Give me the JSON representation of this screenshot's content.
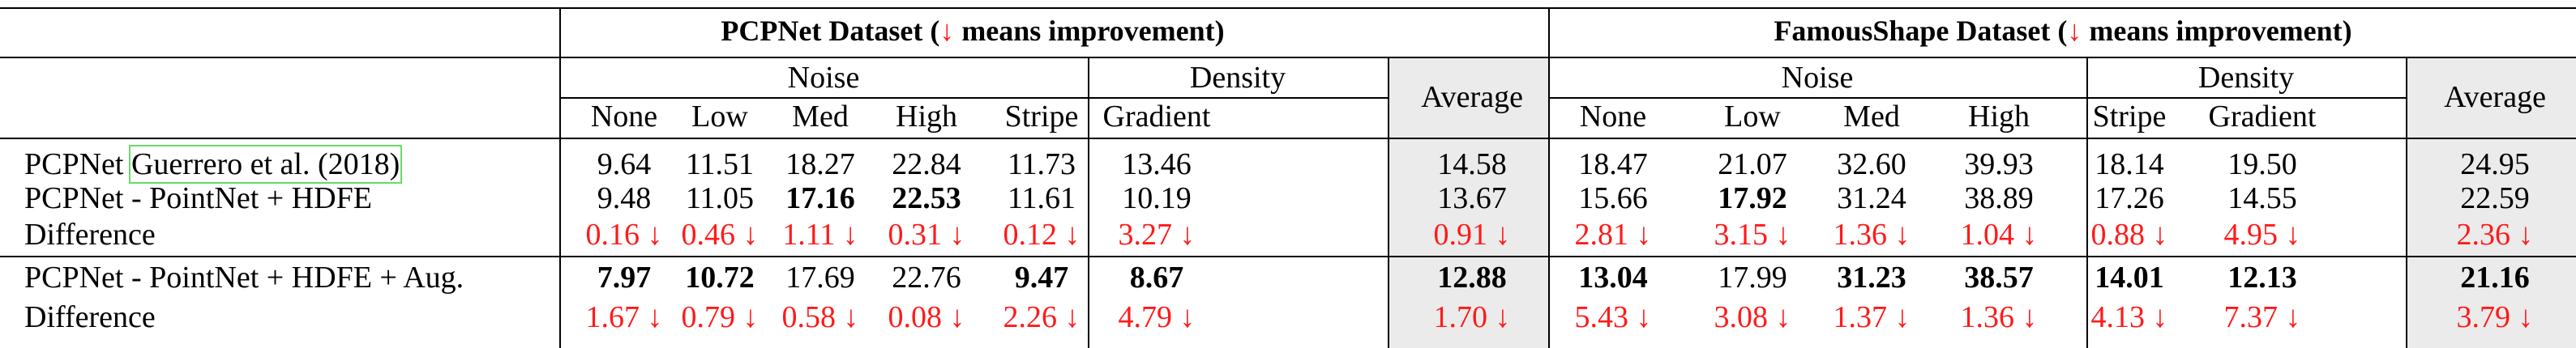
{
  "header": {
    "pcpnet_title_pre": "PCPNet Dataset (",
    "pcpnet_title_arrow": "↓",
    "pcpnet_title_post": " means improvement)",
    "famous_title_pre": "FamousShape Dataset (",
    "famous_title_arrow": "↓",
    "famous_title_post": " means improvement)",
    "noise": "Noise",
    "density": "Density",
    "average": "Average",
    "columns": [
      "None",
      "Low",
      "Med",
      "High",
      "Stripe",
      "Gradient"
    ]
  },
  "rows": [
    {
      "label_pre": "PCPNet ",
      "label_ref": "Guerrero et al. (2018)",
      "pcpnet": [
        "9.64",
        "11.51",
        "18.27",
        "22.84",
        "11.73",
        "13.46",
        "14.58"
      ],
      "famous": [
        "18.47",
        "21.07",
        "32.60",
        "39.93",
        "18.14",
        "19.50",
        "24.95"
      ]
    },
    {
      "label": "PCPNet - PointNet + HDFE",
      "pcpnet": [
        "9.48",
        "11.05",
        "17.16",
        "22.53",
        "11.61",
        "10.19",
        "13.67"
      ],
      "famous": [
        "15.66",
        "17.92",
        "31.24",
        "38.89",
        "17.26",
        "14.55",
        "22.59"
      ]
    },
    {
      "label": "Difference",
      "pcpnet": [
        "0.16 ↓",
        "0.46 ↓",
        "1.11 ↓",
        "0.31 ↓",
        "0.12 ↓",
        "3.27 ↓",
        "0.91 ↓"
      ],
      "famous": [
        "2.81 ↓",
        "3.15 ↓",
        "1.36 ↓",
        "1.04 ↓",
        "0.88 ↓",
        "4.95 ↓",
        "2.36 ↓"
      ]
    },
    {
      "label": "PCPNet - PointNet + HDFE + Aug.",
      "pcpnet": [
        "7.97",
        "10.72",
        "17.69",
        "22.76",
        "9.47",
        "8.67",
        "12.88"
      ],
      "famous": [
        "13.04",
        "17.99",
        "31.23",
        "38.57",
        "14.01",
        "12.13",
        "21.16"
      ]
    },
    {
      "label": "Difference",
      "pcpnet": [
        "1.67 ↓",
        "0.79 ↓",
        "0.58 ↓",
        "0.08 ↓",
        "2.26 ↓",
        "4.79 ↓",
        "1.70 ↓"
      ],
      "famous": [
        "5.43 ↓",
        "3.08 ↓",
        "1.37 ↓",
        "1.36 ↓",
        "4.13 ↓",
        "7.37 ↓",
        "3.79 ↓"
      ]
    }
  ],
  "colors": {
    "improvement": "#ff1a1a",
    "average_shade": "#ebebeb",
    "citation_box": "#66dd66"
  }
}
